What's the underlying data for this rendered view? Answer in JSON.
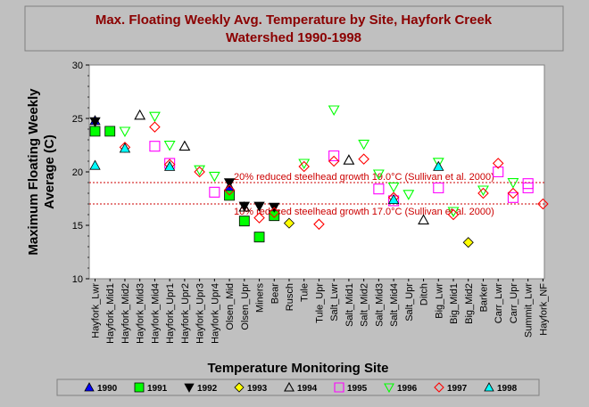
{
  "chart_data": {
    "type": "scatter",
    "title": "Max. Floating Weekly Avg. Temperature by Site, Hayfork Creek Watershed 1990-1998",
    "title_lines": [
      "Max. Floating Weekly Avg. Temperature by Site, Hayfork Creek",
      "Watershed 1990-1998"
    ],
    "xlabel": "Temperature Monitoring Site",
    "ylabel_lines": [
      "Maximum Floating Weekly",
      "Average (C)"
    ],
    "ylim": [
      10,
      30
    ],
    "yticks": [
      "10",
      "15",
      "20",
      "25",
      "30"
    ],
    "grid": false,
    "legend_position": "bottom",
    "categories": [
      "Hayfork_Lwr",
      "Hayfork_Mid1",
      "Hayfork_Mid2",
      "Hayfork_Mid3",
      "Hayfork_Mid4",
      "Hayfork_Upr1",
      "Hayfork_Upr2",
      "Hayfork_Upr3",
      "Hayfork_Upr4",
      "Olsen_Mid",
      "Olsen_Upr",
      "Miners",
      "Bear",
      "Rusch",
      "Tule",
      "Tule_Upr",
      "Salt_Lwr",
      "Salt_Mid1",
      "Salt_Mid2",
      "Salt_Mid3",
      "Salt_Mid4",
      "Salt_Upr",
      "Ditch",
      "Big_Lwr",
      "Big_Mid1",
      "Big_Mid2",
      "Barker",
      "Carr_Lwr",
      "Carr_Upr",
      "Summit_Lwr",
      "Hayfork_NF"
    ],
    "reference_lines": [
      {
        "value": 19.0,
        "label": "20% reduced steelhead growth 19.0°C (Sullivan et al. 2000)",
        "color": "#cc0000"
      },
      {
        "value": 17.0,
        "label": "10% reduced steelhead growth 17.0°C (Sullivan et al. 2000)",
        "color": "#cc0000"
      }
    ],
    "series": [
      {
        "name": "1990",
        "marker": "triangle-up",
        "filled": true,
        "color": "#0000ff",
        "points": [
          {
            "x": "Hayfork_Lwr",
            "y": 24.8
          },
          {
            "x": "Olsen_Mid",
            "y": 18.6
          }
        ]
      },
      {
        "name": "1991",
        "marker": "square",
        "filled": true,
        "color": "#00ff00",
        "points": [
          {
            "x": "Hayfork_Lwr",
            "y": 23.8
          },
          {
            "x": "Hayfork_Mid1",
            "y": 23.8
          },
          {
            "x": "Olsen_Mid",
            "y": 17.8
          },
          {
            "x": "Olsen_Upr",
            "y": 15.4
          },
          {
            "x": "Miners",
            "y": 13.9
          },
          {
            "x": "Bear",
            "y": 15.9
          }
        ]
      },
      {
        "name": "1992",
        "marker": "triangle-down",
        "filled": true,
        "color": "#000000",
        "points": [
          {
            "x": "Hayfork_Lwr",
            "y": 24.7
          },
          {
            "x": "Olsen_Mid",
            "y": 19.0
          },
          {
            "x": "Olsen_Upr",
            "y": 16.8
          },
          {
            "x": "Miners",
            "y": 16.8
          },
          {
            "x": "Bear",
            "y": 16.7
          }
        ]
      },
      {
        "name": "1993",
        "marker": "diamond",
        "filled": true,
        "color": "#ffff00",
        "points": [
          {
            "x": "Rusch",
            "y": 15.2
          },
          {
            "x": "Big_Mid2",
            "y": 13.4
          }
        ]
      },
      {
        "name": "1994",
        "marker": "triangle-up",
        "filled": false,
        "color": "#000000",
        "points": [
          {
            "x": "Hayfork_Mid3",
            "y": 25.3
          },
          {
            "x": "Hayfork_Upr2",
            "y": 22.4
          },
          {
            "x": "Olsen_Upr",
            "y": 16.7
          },
          {
            "x": "Salt_Mid1",
            "y": 21.1
          },
          {
            "x": "Ditch",
            "y": 15.5
          }
        ]
      },
      {
        "name": "1995",
        "marker": "square",
        "filled": false,
        "color": "#ff00ff",
        "points": [
          {
            "x": "Hayfork_Mid4",
            "y": 22.4
          },
          {
            "x": "Hayfork_Upr1",
            "y": 20.8
          },
          {
            "x": "Hayfork_Upr4",
            "y": 18.1
          },
          {
            "x": "Salt_Lwr",
            "y": 21.5
          },
          {
            "x": "Salt_Mid3",
            "y": 18.4
          },
          {
            "x": "Salt_Mid4",
            "y": 17.3
          },
          {
            "x": "Big_Lwr",
            "y": 18.5
          },
          {
            "x": "Carr_Lwr",
            "y": 20.0
          },
          {
            "x": "Carr_Upr",
            "y": 17.6
          },
          {
            "x": "Summit_Lwr",
            "y": 18.5
          },
          {
            "x": "Summit_Lwr",
            "y": 18.9
          }
        ]
      },
      {
        "name": "1996",
        "marker": "triangle-down",
        "filled": false,
        "color": "#00ff00",
        "points": [
          {
            "x": "Hayfork_Mid2",
            "y": 23.8
          },
          {
            "x": "Hayfork_Mid4",
            "y": 25.2
          },
          {
            "x": "Hayfork_Upr1",
            "y": 22.5
          },
          {
            "x": "Hayfork_Upr3",
            "y": 20.2
          },
          {
            "x": "Hayfork_Upr4",
            "y": 19.6
          },
          {
            "x": "Tule",
            "y": 20.8
          },
          {
            "x": "Salt_Lwr",
            "y": 25.8
          },
          {
            "x": "Salt_Mid2",
            "y": 22.6
          },
          {
            "x": "Salt_Mid3",
            "y": 19.8
          },
          {
            "x": "Salt_Mid4",
            "y": 18.6
          },
          {
            "x": "Salt_Upr",
            "y": 17.9
          },
          {
            "x": "Big_Lwr",
            "y": 20.9
          },
          {
            "x": "Big_Mid1",
            "y": 16.3
          },
          {
            "x": "Barker",
            "y": 18.3
          },
          {
            "x": "Carr_Upr",
            "y": 19.0
          }
        ]
      },
      {
        "name": "1997",
        "marker": "diamond",
        "filled": false,
        "color": "#ff0000",
        "points": [
          {
            "x": "Hayfork_Mid2",
            "y": 22.3
          },
          {
            "x": "Hayfork_Mid4",
            "y": 24.2
          },
          {
            "x": "Hayfork_Upr1",
            "y": 20.7
          },
          {
            "x": "Hayfork_Upr3",
            "y": 20.0
          },
          {
            "x": "Olsen_Mid",
            "y": 18.3
          },
          {
            "x": "Miners",
            "y": 15.7
          },
          {
            "x": "Bear",
            "y": 16.2
          },
          {
            "x": "Tule",
            "y": 20.5
          },
          {
            "x": "Tule_Upr",
            "y": 15.1
          },
          {
            "x": "Salt_Lwr",
            "y": 21.0
          },
          {
            "x": "Salt_Mid2",
            "y": 21.2
          },
          {
            "x": "Salt_Mid4",
            "y": 17.6
          },
          {
            "x": "Big_Mid1",
            "y": 16.0
          },
          {
            "x": "Barker",
            "y": 18.0
          },
          {
            "x": "Carr_Lwr",
            "y": 20.8
          },
          {
            "x": "Carr_Upr",
            "y": 18.0
          },
          {
            "x": "Hayfork_NF",
            "y": 17.0
          }
        ]
      },
      {
        "name": "1998",
        "marker": "triangle-up",
        "filled": true,
        "color": "#00ffff",
        "points": [
          {
            "x": "Hayfork_Lwr",
            "y": 20.6
          },
          {
            "x": "Hayfork_Mid2",
            "y": 22.2
          },
          {
            "x": "Hayfork_Upr1",
            "y": 20.5
          },
          {
            "x": "Salt_Mid4",
            "y": 17.4
          },
          {
            "x": "Big_Lwr",
            "y": 20.5
          }
        ]
      }
    ]
  },
  "colors": {
    "background": "#c0c0c0",
    "plot_area": "#ffffff",
    "title": "#8b0000",
    "reference_line": "#cc0000"
  }
}
